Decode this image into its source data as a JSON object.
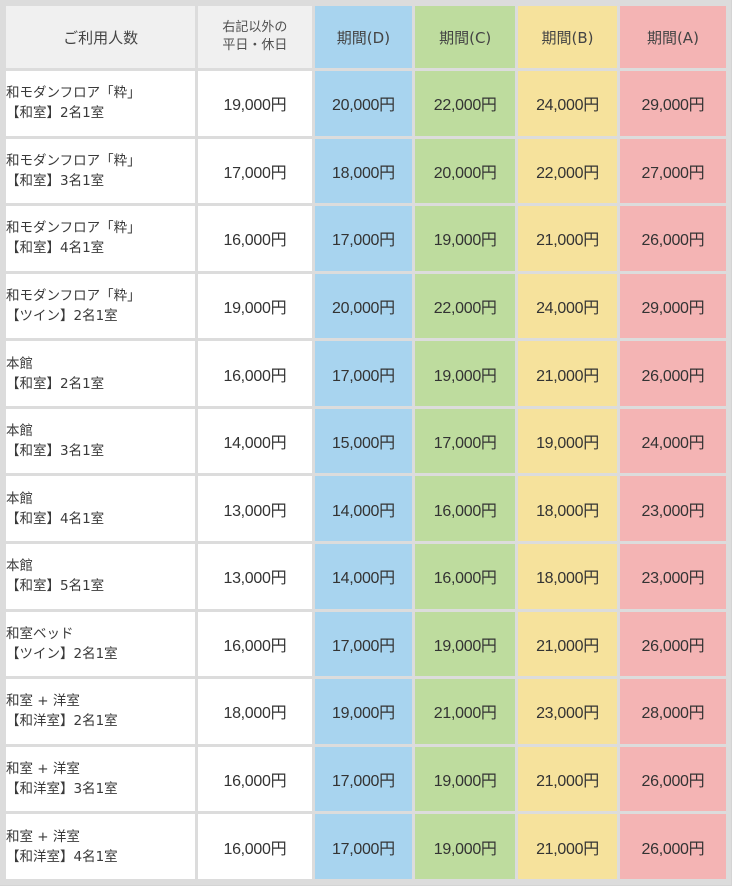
{
  "table": {
    "headers": {
      "room": "ご利用人数",
      "weekday_line1": "右記以外の",
      "weekday_line2": "平日・休日",
      "period_d": "期間(D)",
      "period_c": "期間(C)",
      "period_b": "期間(B)",
      "period_a": "期間(A)"
    },
    "colors": {
      "period_d": "#a8d4ef",
      "period_c": "#bedc9e",
      "period_b": "#f6e29c",
      "period_a": "#f4b4b4",
      "header_gray": "#f0f0f0"
    },
    "rows": [
      {
        "line1": "和モダンフロア「粋」",
        "line2": "【和室】2名1室",
        "weekday": "19,000円",
        "d": "20,000円",
        "c": "22,000円",
        "b": "24,000円",
        "a": "29,000円"
      },
      {
        "line1": "和モダンフロア「粋」",
        "line2": "【和室】3名1室",
        "weekday": "17,000円",
        "d": "18,000円",
        "c": "20,000円",
        "b": "22,000円",
        "a": "27,000円"
      },
      {
        "line1": "和モダンフロア「粋」",
        "line2": "【和室】4名1室",
        "weekday": "16,000円",
        "d": "17,000円",
        "c": "19,000円",
        "b": "21,000円",
        "a": "26,000円"
      },
      {
        "line1": "和モダンフロア「粋」",
        "line2": "【ツイン】2名1室",
        "weekday": "19,000円",
        "d": "20,000円",
        "c": "22,000円",
        "b": "24,000円",
        "a": "29,000円"
      },
      {
        "line1": "本館",
        "line2": "【和室】2名1室",
        "weekday": "16,000円",
        "d": "17,000円",
        "c": "19,000円",
        "b": "21,000円",
        "a": "26,000円"
      },
      {
        "line1": "本館",
        "line2": "【和室】3名1室",
        "weekday": "14,000円",
        "d": "15,000円",
        "c": "17,000円",
        "b": "19,000円",
        "a": "24,000円"
      },
      {
        "line1": "本館",
        "line2": "【和室】4名1室",
        "weekday": "13,000円",
        "d": "14,000円",
        "c": "16,000円",
        "b": "18,000円",
        "a": "23,000円"
      },
      {
        "line1": "本館",
        "line2": "【和室】5名1室",
        "weekday": "13,000円",
        "d": "14,000円",
        "c": "16,000円",
        "b": "18,000円",
        "a": "23,000円"
      },
      {
        "line1": "和室ベッド",
        "line2": "【ツイン】2名1室",
        "weekday": "16,000円",
        "d": "17,000円",
        "c": "19,000円",
        "b": "21,000円",
        "a": "26,000円"
      },
      {
        "line1": "和室 + 洋室",
        "line2": "【和洋室】2名1室",
        "weekday": "18,000円",
        "d": "19,000円",
        "c": "21,000円",
        "b": "23,000円",
        "a": "28,000円"
      },
      {
        "line1": "和室 + 洋室",
        "line2": "【和洋室】3名1室",
        "weekday": "16,000円",
        "d": "17,000円",
        "c": "19,000円",
        "b": "21,000円",
        "a": "26,000円"
      },
      {
        "line1": "和室 + 洋室",
        "line2": "【和洋室】4名1室",
        "weekday": "16,000円",
        "d": "17,000円",
        "c": "19,000円",
        "b": "21,000円",
        "a": "26,000円"
      }
    ]
  }
}
